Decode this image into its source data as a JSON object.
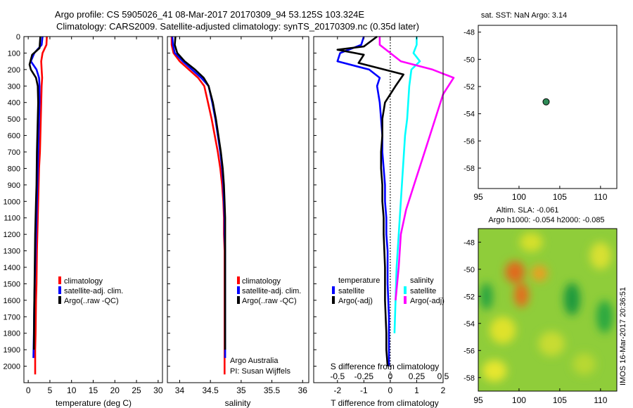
{
  "title": {
    "line1": "Argo profile: CS 5905026_41 08-Mar-2017 20170309_94 53.125S 103.324E",
    "line2": "Climatology: CARS2009. Satellite-adjusted climatology: synTS_20170309.nc (0.35d later)"
  },
  "colors": {
    "clim": "#ff0000",
    "sat": "#0000ff",
    "argo": "#000000",
    "sal_sat": "#00ffff",
    "sal_argo": "#ff00ff",
    "marker": "#2e8b57"
  },
  "chart_data": [
    {
      "id": "temperature",
      "type": "line",
      "xlabel": "temperature (deg C)",
      "ylabel": "",
      "xlim": [
        -1,
        31
      ],
      "ylim": [
        2100,
        0
      ],
      "xticks": [
        "0",
        "5",
        "10",
        "15",
        "20",
        "25",
        "30"
      ],
      "yticks": [
        "0",
        "100",
        "200",
        "300",
        "400",
        "500",
        "600",
        "700",
        "800",
        "900",
        "1000",
        "1100",
        "1200",
        "1300",
        "1400",
        "1500",
        "1600",
        "1700",
        "1800",
        "1900",
        "2000"
      ],
      "legend": [
        "climatology",
        "satellite-adj. clim.",
        "Argo(..raw -QC)"
      ],
      "series": [
        {
          "name": "climatology",
          "color_key": "clim",
          "x": [
            4.3,
            4.2,
            3.3,
            3.0,
            3.1,
            3.2,
            3.1,
            3.0,
            2.9,
            2.8,
            2.7,
            2.5,
            2.4,
            2.3,
            2.2,
            2.1,
            2.0,
            1.95,
            1.9,
            1.8,
            1.75,
            1.7,
            1.6,
            1.6
          ],
          "y": [
            0,
            50,
            100,
            150,
            200,
            250,
            300,
            400,
            500,
            600,
            700,
            800,
            900,
            1000,
            1100,
            1200,
            1300,
            1400,
            1500,
            1600,
            1700,
            1800,
            1900,
            2050
          ]
        },
        {
          "name": "satellite-adj. clim.",
          "color_key": "sat",
          "x": [
            3.3,
            3.1,
            1.4,
            0.6,
            1.9,
            2.5,
            2.6,
            2.6,
            2.5,
            2.4,
            2.3,
            2.2,
            2.1,
            2.0,
            1.9,
            1.8,
            1.7,
            1.6,
            1.5,
            1.4,
            1.35,
            1.3,
            1.2
          ],
          "y": [
            0,
            50,
            100,
            150,
            200,
            250,
            300,
            400,
            500,
            600,
            700,
            800,
            900,
            1000,
            1100,
            1200,
            1300,
            1400,
            1500,
            1600,
            1700,
            1800,
            1950
          ]
        },
        {
          "name": "Argo(..raw -QC)",
          "color_key": "argo",
          "x": [
            2.8,
            2.6,
            0.9,
            0.3,
            0.6,
            1.8,
            2.2,
            2.3,
            2.2,
            2.1,
            2.0,
            1.95,
            1.9,
            1.8,
            1.7,
            1.6,
            1.55,
            1.5,
            1.45,
            1.4,
            1.35,
            1.3
          ],
          "y": [
            0,
            70,
            110,
            170,
            200,
            250,
            300,
            400,
            500,
            600,
            700,
            800,
            900,
            1000,
            1100,
            1200,
            1300,
            1400,
            1500,
            1600,
            1700,
            1900
          ]
        }
      ]
    },
    {
      "id": "salinity",
      "type": "line",
      "xlabel": "salinity",
      "ylabel": "",
      "xlim": [
        33.8,
        36.1
      ],
      "ylim": [
        2100,
        0
      ],
      "xticks": [
        "34",
        "34.5",
        "35",
        "35.5",
        "36"
      ],
      "legend": [
        "climatology",
        "satellite-adj. clim.",
        "Argo(..raw -QC)"
      ],
      "annotation": [
        "Argo Australia",
        "PI: Susan Wijffels"
      ],
      "series": [
        {
          "name": "climatology",
          "color_key": "clim",
          "x": [
            33.87,
            33.87,
            33.9,
            34.0,
            34.15,
            34.3,
            34.4,
            34.46,
            34.52,
            34.57,
            34.62,
            34.66,
            34.69,
            34.71,
            34.72,
            34.72,
            34.73,
            34.73,
            34.73,
            34.73,
            34.73,
            34.73
          ],
          "y": [
            0,
            50,
            100,
            150,
            200,
            250,
            300,
            400,
            500,
            600,
            700,
            800,
            900,
            1000,
            1100,
            1200,
            1300,
            1400,
            1500,
            1700,
            1900,
            2050
          ]
        },
        {
          "name": "satellite-adj. clim.",
          "color_key": "sat",
          "x": [
            33.88,
            33.89,
            33.92,
            34.05,
            34.2,
            34.35,
            34.47,
            34.53,
            34.58,
            34.62,
            34.66,
            34.69,
            34.71,
            34.72,
            34.73,
            34.73,
            34.74,
            34.74,
            34.74,
            34.74,
            34.74
          ],
          "y": [
            0,
            50,
            100,
            150,
            200,
            250,
            300,
            400,
            500,
            600,
            700,
            800,
            900,
            1000,
            1100,
            1200,
            1300,
            1500,
            1700,
            1850,
            1950
          ]
        },
        {
          "name": "Argo(..raw -QC)",
          "color_key": "argo",
          "x": [
            33.93,
            33.92,
            33.96,
            34.08,
            34.25,
            34.39,
            34.47,
            34.54,
            34.59,
            34.63,
            34.67,
            34.7,
            34.72,
            34.73,
            34.74,
            34.74,
            34.74,
            34.74,
            34.74
          ],
          "y": [
            0,
            50,
            100,
            150,
            200,
            250,
            300,
            400,
            500,
            600,
            700,
            800,
            900,
            1000,
            1100,
            1200,
            1400,
            1700,
            1900
          ]
        }
      ]
    },
    {
      "id": "difference",
      "type": "line",
      "xlabel": "T difference from climatology",
      "xlabel_top": "S difference from climatology",
      "xlim": [
        -2.9,
        2.0
      ],
      "ylim": [
        2100,
        0
      ],
      "xticks": [
        "-2",
        "-1",
        "0",
        "1",
        "2"
      ],
      "xticks_top": [
        "-0.5",
        "-0.25",
        "0",
        "0.25",
        "0.5"
      ],
      "legend_temperature": [
        "temperature",
        "satellite",
        "Argo(-adj)"
      ],
      "legend_salinity": [
        "salinity",
        "satellite",
        "Argo(-adj)"
      ],
      "series": [
        {
          "name": "temperature satellite",
          "color_key": "sat",
          "x": [
            -1.0,
            -1.1,
            -1.9,
            -2.0,
            -0.8,
            -0.4,
            -0.5,
            -0.4,
            -0.35,
            -0.3,
            -0.3,
            -0.25,
            -0.2,
            -0.2,
            -0.15,
            -0.15,
            -0.1,
            -0.1,
            -0.1,
            -0.05,
            -0.05,
            -0.05
          ],
          "y": [
            0,
            50,
            100,
            150,
            200,
            250,
            300,
            400,
            500,
            600,
            700,
            800,
            900,
            1000,
            1100,
            1200,
            1300,
            1400,
            1500,
            1700,
            1900,
            2000
          ]
        },
        {
          "name": "temperature Argo(-adj)",
          "color_key": "argo",
          "x": [
            -0.5,
            -1.0,
            -2.0,
            -1.0,
            -1.2,
            0.5,
            0.2,
            -0.2,
            -0.3,
            -0.3,
            -0.35,
            -0.35,
            -0.3,
            -0.3,
            -0.25,
            -0.25,
            -0.2,
            -0.2,
            -0.15,
            -0.15,
            -0.1
          ],
          "y": [
            0,
            60,
            80,
            110,
            160,
            230,
            300,
            400,
            500,
            600,
            700,
            800,
            900,
            1000,
            1100,
            1200,
            1400,
            1600,
            1800,
            1900,
            2000
          ]
        },
        {
          "name": "salinity satellite",
          "color_key": "sal_sat",
          "x": [
            0.25,
            0.25,
            0.22,
            0.28,
            0.2,
            0.18,
            0.17,
            0.16,
            0.14,
            0.13,
            0.12,
            0.11,
            0.1,
            0.09,
            0.08,
            0.06,
            0.05,
            0.04
          ],
          "y": [
            0,
            50,
            100,
            150,
            200,
            300,
            400,
            500,
            600,
            700,
            800,
            900,
            1000,
            1100,
            1200,
            1400,
            1600,
            1800
          ]
        },
        {
          "name": "salinity Argo(-adj)",
          "color_key": "sal_argo",
          "x": [
            -0.1,
            -0.1,
            0.0,
            0.1,
            0.4,
            0.6,
            0.5,
            0.45,
            0.4,
            0.35,
            0.3,
            0.25,
            0.2,
            0.15,
            0.1,
            0.08,
            0.05
          ],
          "y": [
            0,
            50,
            100,
            150,
            200,
            250,
            350,
            450,
            550,
            650,
            750,
            850,
            950,
            1050,
            1200,
            1400,
            1600
          ]
        }
      ]
    },
    {
      "id": "map",
      "type": "scatter",
      "title": "sat. SST: NaN Argo: 3.14",
      "xlim": [
        95,
        112
      ],
      "ylim": [
        -59.5,
        -47.5
      ],
      "xticks": [
        "95",
        "100",
        "105",
        "110"
      ],
      "yticks": [
        "-48",
        "-50",
        "-52",
        "-54",
        "-56",
        "-58"
      ],
      "points": [
        {
          "x": 103.324,
          "y": -53.125
        }
      ]
    },
    {
      "id": "sla",
      "type": "heatmap",
      "title1": "Altim. SLA: -0.061",
      "title2": "Argo h1000: -0.054 h2000: -0.085",
      "xlim": [
        95,
        112
      ],
      "ylim": [
        -59,
        -47
      ],
      "xticks": [
        "95",
        "100",
        "105",
        "110"
      ],
      "yticks": [
        "-48",
        "-50",
        "-52",
        "-54",
        "-56",
        "-58"
      ],
      "blobs": [
        {
          "x": 99.5,
          "y": -50.2,
          "rx": 1.2,
          "ry": 0.8,
          "c": "#e06a1a"
        },
        {
          "x": 102.5,
          "y": -50.3,
          "rx": 1.0,
          "ry": 0.6,
          "c": "#e8a020"
        },
        {
          "x": 100.3,
          "y": -51.9,
          "rx": 0.9,
          "ry": 0.9,
          "c": "#e2701c"
        },
        {
          "x": 98.0,
          "y": -54.5,
          "rx": 1.6,
          "ry": 1.0,
          "c": "#dfe22a"
        },
        {
          "x": 97.0,
          "y": -57.5,
          "rx": 1.5,
          "ry": 0.8,
          "c": "#e6e62d"
        },
        {
          "x": 104.0,
          "y": -55.5,
          "rx": 1.6,
          "ry": 0.9,
          "c": "#c8dc30"
        },
        {
          "x": 108.0,
          "y": -57.0,
          "rx": 1.4,
          "ry": 0.8,
          "c": "#b8d832"
        },
        {
          "x": 110.0,
          "y": -49.0,
          "rx": 1.3,
          "ry": 1.0,
          "c": "#d8e030"
        },
        {
          "x": 106.5,
          "y": -52.2,
          "rx": 1.0,
          "ry": 1.2,
          "c": "#1f9a3e"
        },
        {
          "x": 96.0,
          "y": -52.0,
          "rx": 0.8,
          "ry": 1.0,
          "c": "#2aa540"
        },
        {
          "x": 101.5,
          "y": -48.0,
          "rx": 1.4,
          "ry": 0.7,
          "c": "#d5e02a"
        },
        {
          "x": 110.5,
          "y": -53.5,
          "rx": 1.0,
          "ry": 1.2,
          "c": "#2ba840"
        }
      ]
    }
  ],
  "watermark": "IMOS 16-Mar-2017 20:36:51"
}
